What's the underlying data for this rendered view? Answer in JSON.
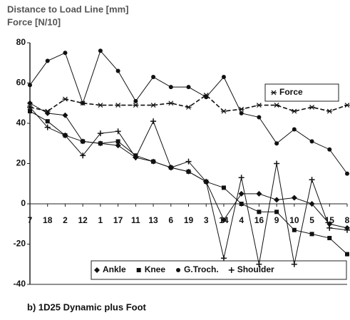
{
  "chart_data": {
    "type": "line",
    "title": "Distance to Load Line [mm]",
    "subtitle": "Force [N/10]",
    "caption": "b)  1D25 Dynamic plus Foot",
    "categories": [
      "7",
      "18",
      "2",
      "12",
      "1",
      "17",
      "11",
      "13",
      "6",
      "19",
      "3",
      "14",
      "4",
      "16",
      "9",
      "10",
      "5",
      "15",
      "8"
    ],
    "ylim": [
      -40,
      80
    ],
    "yticks": [
      -40,
      -20,
      0,
      20,
      40,
      60,
      80
    ],
    "series": [
      {
        "name": "Ankle",
        "marker": "diamond",
        "color": "#111111",
        "values": [
          50,
          45,
          44,
          31,
          30,
          29,
          23,
          21,
          18,
          16,
          11,
          -8,
          5,
          5,
          2,
          3,
          0,
          -10,
          -12
        ]
      },
      {
        "name": "Knee",
        "marker": "square",
        "color": "#111111",
        "values": [
          46,
          41,
          34,
          31,
          30,
          31,
          24,
          21,
          18,
          16,
          11,
          8,
          0,
          -4,
          -4,
          -13,
          -15,
          -17,
          -25
        ]
      },
      {
        "name": "G.Troch.",
        "marker": "circle",
        "color": "#111111",
        "values": [
          59,
          71,
          75,
          50,
          76,
          66,
          51,
          63,
          58,
          58,
          53,
          63,
          45,
          43,
          30,
          37,
          31,
          27,
          15
        ]
      },
      {
        "name": "Shoulder",
        "marker": "plus",
        "color": "#111111",
        "values": [
          48,
          38,
          34,
          24,
          35,
          36,
          23,
          41,
          18,
          21,
          11,
          -27,
          13,
          -30,
          20,
          -30,
          12,
          -12,
          -13
        ]
      },
      {
        "name": "Force",
        "marker": "star",
        "color": "#111111",
        "dashed": true,
        "values": [
          48,
          46,
          52,
          50,
          49,
          49,
          49,
          49,
          50,
          48,
          54,
          46,
          47,
          49,
          49,
          46,
          48,
          46,
          49
        ]
      }
    ]
  }
}
